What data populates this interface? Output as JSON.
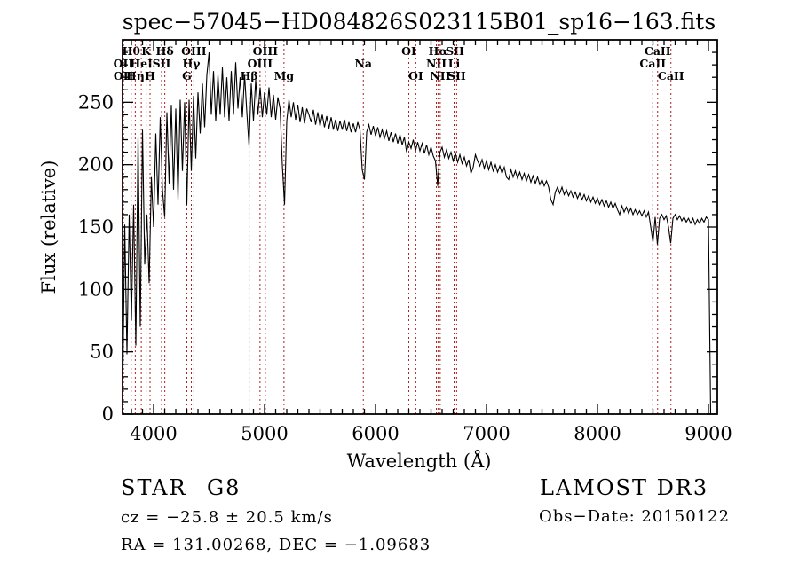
{
  "title": "spec−57045−HD084826S023115B01_sp16−163.fits",
  "plot": {
    "xlabel": "Wavelength (Å)",
    "ylabel": "Flux (relative)",
    "x_ticks": [
      4000,
      5000,
      6000,
      7000,
      8000,
      9000
    ],
    "y_ticks": [
      0,
      50,
      100,
      150,
      200,
      250
    ],
    "x_minor_step": 100,
    "y_minor_step": 10,
    "x_range": [
      3720,
      9080
    ],
    "y_range": [
      0,
      300
    ],
    "grid": false
  },
  "line_markers": [
    {
      "label": "OII",
      "wavelength": 3727,
      "row": 2
    },
    {
      "label": "OII",
      "wavelength": 3729,
      "row": 3
    },
    {
      "label": "Hθ",
      "wavelength": 3798,
      "row": 1
    },
    {
      "label": "Hη",
      "wavelength": 3835,
      "row": 3
    },
    {
      "label": "HeI",
      "wavelength": 3889,
      "row": 2
    },
    {
      "label": "K",
      "wavelength": 3933,
      "row": 1
    },
    {
      "label": "H",
      "wavelength": 3968,
      "row": 3
    },
    {
      "label": "SII",
      "wavelength": 4072,
      "row": 2
    },
    {
      "label": "Hδ",
      "wavelength": 4101,
      "row": 1
    },
    {
      "label": "G",
      "wavelength": 4300,
      "row": 3
    },
    {
      "label": "Hγ",
      "wavelength": 4340,
      "row": 2
    },
    {
      "label": "OIII",
      "wavelength": 4363,
      "row": 1
    },
    {
      "label": "Hβ",
      "wavelength": 4861,
      "row": 3
    },
    {
      "label": "OIII",
      "wavelength": 4959,
      "row": 2
    },
    {
      "label": "OIII",
      "wavelength": 5007,
      "row": 1
    },
    {
      "label": "Mg",
      "wavelength": 5175,
      "row": 3
    },
    {
      "label": "Na",
      "wavelength": 5890,
      "row": 2
    },
    {
      "label": "OI",
      "wavelength": 6300,
      "row": 1
    },
    {
      "label": "OI",
      "wavelength": 6363,
      "row": 3
    },
    {
      "label": "NII",
      "wavelength": 6548,
      "row": 2
    },
    {
      "label": "Hα",
      "wavelength": 6563,
      "row": 1
    },
    {
      "label": "NII",
      "wavelength": 6583,
      "row": 3
    },
    {
      "label": "Li",
      "wavelength": 6708,
      "row": 2
    },
    {
      "label": "SII",
      "wavelength": 6716,
      "row": 1
    },
    {
      "label": "SII",
      "wavelength": 6731,
      "row": 3
    },
    {
      "label": "CaII",
      "wavelength": 8498,
      "row": 2
    },
    {
      "label": "CaII",
      "wavelength": 8542,
      "row": 1
    },
    {
      "label": "CaII",
      "wavelength": 8662,
      "row": 3
    }
  ],
  "chart_data": {
    "type": "line",
    "title": "spec−57045−HD084826S023115B01_sp16−163.fits",
    "xlabel": "Wavelength (Å)",
    "ylabel": "Flux (relative)",
    "xlim": [
      3720,
      9080
    ],
    "ylim": [
      0,
      300
    ],
    "legend": "none",
    "x_start": 3720,
    "x_step": 20,
    "flux": [
      8,
      152,
      48,
      160,
      75,
      168,
      55,
      222,
      70,
      228,
      120,
      160,
      105,
      190,
      150,
      225,
      168,
      238,
      180,
      158,
      242,
      185,
      248,
      180,
      245,
      172,
      252,
      195,
      250,
      168,
      252,
      195,
      255,
      205,
      258,
      225,
      265,
      230,
      272,
      290,
      240,
      275,
      235,
      272,
      240,
      278,
      238,
      270,
      235,
      275,
      240,
      282,
      245,
      270,
      238,
      272,
      242,
      215,
      265,
      235,
      268,
      240,
      262,
      238,
      258,
      240,
      262,
      238,
      256,
      236,
      254,
      245,
      200,
      168,
      235,
      252,
      238,
      250,
      236,
      248,
      234,
      246,
      233,
      245,
      240,
      234,
      244,
      232,
      242,
      231,
      240,
      230,
      239,
      229,
      238,
      228,
      236,
      227,
      235,
      228,
      236,
      227,
      234,
      226,
      233,
      226,
      234,
      228,
      196,
      188,
      226,
      232,
      224,
      231,
      223,
      230,
      222,
      228,
      221,
      227,
      219,
      226,
      218,
      225,
      217,
      224,
      216,
      222,
      210,
      218,
      213,
      220,
      211,
      218,
      211,
      217,
      209,
      216,
      208,
      214,
      207,
      203,
      183,
      210,
      214,
      206,
      212,
      205,
      210,
      203,
      209,
      202,
      208,
      201,
      206,
      199,
      204,
      193,
      198,
      208,
      203,
      199,
      204,
      197,
      203,
      196,
      202,
      195,
      200,
      194,
      199,
      193,
      198,
      190,
      188,
      196,
      190,
      195,
      189,
      194,
      188,
      193,
      187,
      192,
      186,
      191,
      185,
      190,
      184,
      188,
      183,
      187,
      182,
      172,
      168,
      178,
      182,
      177,
      182,
      176,
      180,
      175,
      179,
      174,
      178,
      173,
      177,
      172,
      176,
      171,
      175,
      170,
      174,
      169,
      173,
      168,
      172,
      167,
      171,
      166,
      170,
      165,
      169,
      164,
      160,
      167,
      162,
      166,
      161,
      165,
      160,
      164,
      160,
      163,
      159,
      163,
      158,
      162,
      150,
      138,
      158,
      136,
      157,
      160,
      156,
      159,
      150,
      137,
      157,
      160,
      156,
      159,
      155,
      158,
      154,
      157,
      153,
      157,
      152,
      156,
      153,
      157,
      154,
      158,
      156,
      0
    ]
  },
  "footer": {
    "class_label": "STAR",
    "subclass": "G8",
    "survey": "LAMOST DR3",
    "cz": "cz = −25.8 ± 20.5 km/s",
    "obs_date": "Obs−Date: 20150122",
    "ra_dec": "RA = 131.00268, DEC =  −1.09683"
  },
  "colors": {
    "marker_line": "#aa2222",
    "spectrum": "#000000",
    "frame": "#000000",
    "text": "#000000",
    "background": "#ffffff"
  }
}
